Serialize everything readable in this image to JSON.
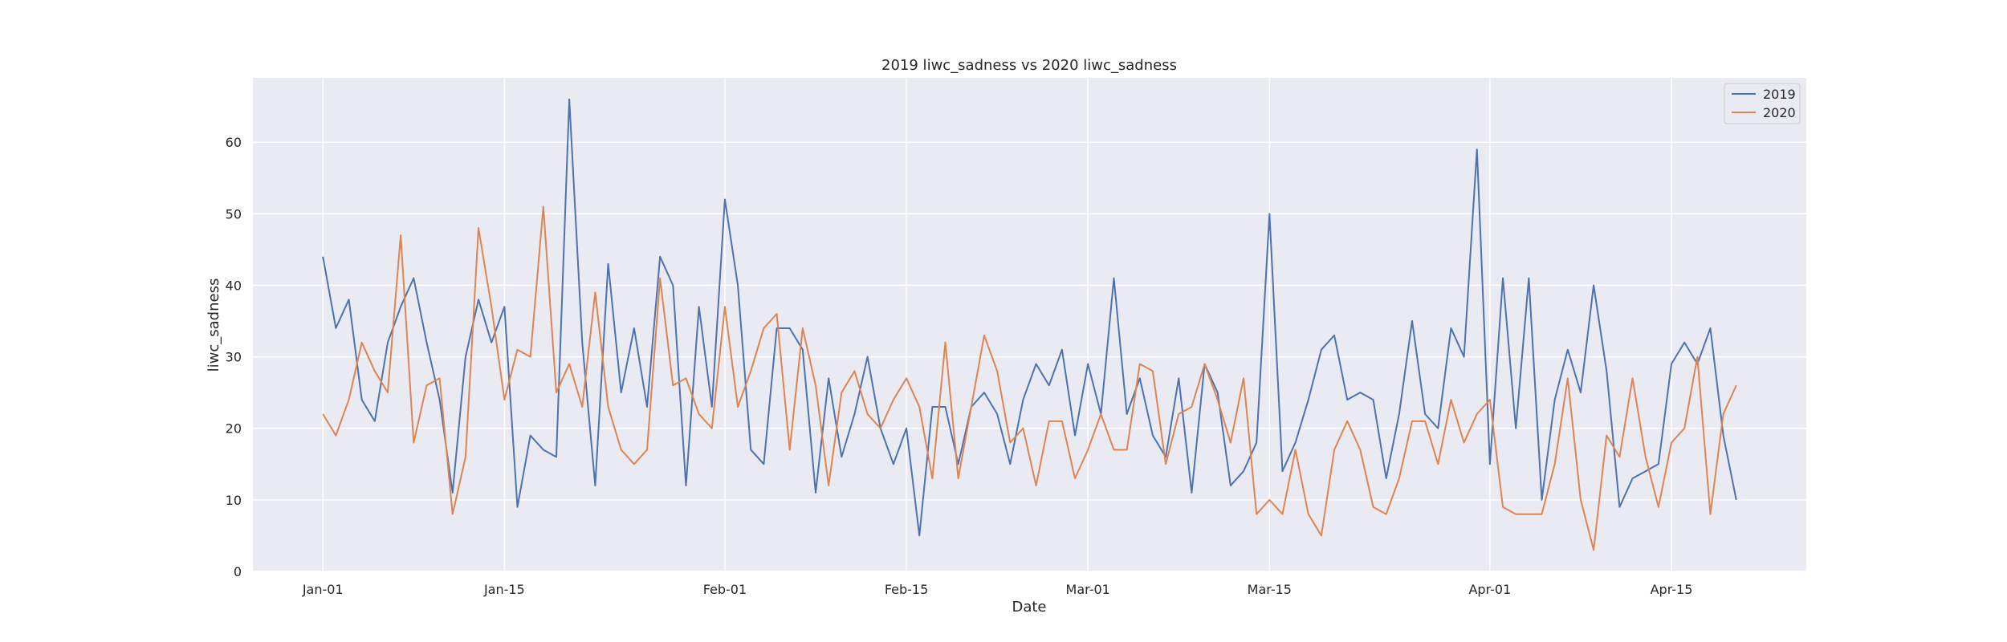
{
  "chart_data": {
    "type": "line",
    "title": "2019 liwc_sadness vs 2020 liwc_sadness",
    "xlabel": "Date",
    "ylabel": "liwc_sadness",
    "x_start": "Jan-01",
    "x_ticks": [
      {
        "label": "Jan-01",
        "day": 0
      },
      {
        "label": "Jan-15",
        "day": 14
      },
      {
        "label": "Feb-01",
        "day": 31
      },
      {
        "label": "Feb-15",
        "day": 45
      },
      {
        "label": "Mar-01",
        "day": 59
      },
      {
        "label": "Mar-15",
        "day": 73
      },
      {
        "label": "Apr-01",
        "day": 90
      },
      {
        "label": "Apr-15",
        "day": 104
      }
    ],
    "xlim_days": [
      -5.4,
      114.4
    ],
    "ylim": [
      0,
      69
    ],
    "y_ticks": [
      0,
      10,
      20,
      30,
      40,
      50,
      60
    ],
    "grid": true,
    "legend": "top-right",
    "series": [
      {
        "name": "2019",
        "color": "#4c72b0",
        "values": [
          44,
          34,
          38,
          24,
          21,
          32,
          37,
          41,
          32,
          24,
          11,
          30,
          38,
          32,
          37,
          9,
          19,
          17,
          16,
          66,
          32,
          12,
          43,
          25,
          34,
          23,
          44,
          40,
          12,
          37,
          23,
          52,
          40,
          17,
          15,
          34,
          34,
          31,
          11,
          27,
          16,
          22,
          30,
          20,
          15,
          20,
          5,
          23,
          23,
          15,
          23,
          25,
          22,
          15,
          24,
          29,
          26,
          31,
          19,
          29,
          22,
          41,
          22,
          27,
          19,
          16,
          27,
          11,
          29,
          25,
          12,
          14,
          18,
          50,
          14,
          18,
          24,
          31,
          33,
          24,
          25,
          24,
          13,
          22,
          35,
          22,
          20,
          34,
          30,
          59,
          15,
          41,
          20,
          41,
          10,
          24,
          31,
          25,
          40,
          28,
          9,
          13,
          14,
          15,
          29,
          32,
          29,
          34,
          19,
          10
        ]
      },
      {
        "name": "2020",
        "color": "#dd8452",
        "values": [
          22,
          19,
          24,
          32,
          28,
          25,
          47,
          18,
          26,
          27,
          8,
          16,
          48,
          37,
          24,
          31,
          30,
          51,
          25,
          29,
          23,
          39,
          23,
          17,
          15,
          17,
          41,
          26,
          27,
          22,
          20,
          37,
          23,
          28,
          34,
          36,
          17,
          34,
          26,
          12,
          25,
          28,
          22,
          20,
          24,
          27,
          23,
          13,
          32,
          13,
          23,
          33,
          28,
          18,
          20,
          12,
          21,
          21,
          13,
          17,
          22,
          17,
          17,
          29,
          28,
          15,
          22,
          23,
          29,
          24,
          18,
          27,
          8,
          10,
          8,
          17,
          8,
          5,
          17,
          21,
          17,
          9,
          8,
          13,
          21,
          21,
          15,
          24,
          18,
          22,
          24,
          9,
          8,
          8,
          8,
          15,
          27,
          10,
          3,
          19,
          16,
          27,
          16,
          9,
          18,
          20,
          30,
          8,
          22,
          26
        ]
      }
    ]
  }
}
